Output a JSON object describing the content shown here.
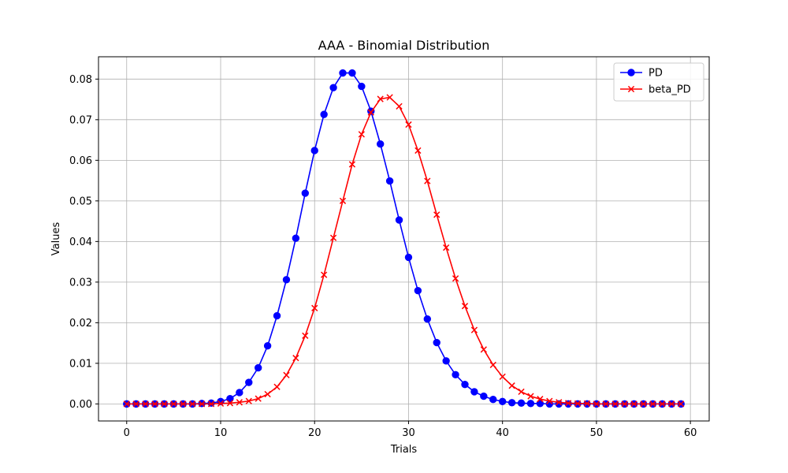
{
  "chart_data": {
    "type": "line",
    "title": "AAA - Binomial Distribution",
    "xlabel": "Trials",
    "ylabel": "Values",
    "xlim": [
      -3,
      62
    ],
    "ylim": [
      -0.0042,
      0.0855
    ],
    "xticks": [
      0,
      10,
      20,
      30,
      40,
      50,
      60
    ],
    "yticks": [
      0.0,
      0.01,
      0.02,
      0.03,
      0.04,
      0.05,
      0.06,
      0.07,
      0.08
    ],
    "ytick_labels": [
      "0.00",
      "0.01",
      "0.02",
      "0.03",
      "0.04",
      "0.05",
      "0.06",
      "0.07",
      "0.08"
    ],
    "grid": true,
    "legend_position": "top-right",
    "series": [
      {
        "name": "PD",
        "color": "#0000ff",
        "marker": "circle",
        "values": [
          0,
          0,
          0,
          0,
          0,
          0,
          0,
          0,
          0.0001,
          0.0002,
          0.0006,
          0.0013,
          0.0028,
          0.0053,
          0.0089,
          0.0143,
          0.0217,
          0.0306,
          0.0408,
          0.0519,
          0.0624,
          0.0713,
          0.0779,
          0.0815,
          0.0815,
          0.0782,
          0.0721,
          0.064,
          0.0549,
          0.0453,
          0.0361,
          0.0279,
          0.0209,
          0.0151,
          0.0106,
          0.0072,
          0.0048,
          0.003,
          0.0019,
          0.0011,
          0.0006,
          0.0003,
          0.0002,
          0.0001,
          0.0001,
          0,
          0,
          0,
          0,
          0,
          0,
          0,
          0,
          0,
          0,
          0,
          0,
          0,
          0,
          0
        ]
      },
      {
        "name": "beta_PD",
        "color": "#ff0000",
        "marker": "x",
        "values": [
          0,
          0,
          0,
          0,
          0,
          0,
          0,
          0,
          0,
          0,
          0.0001,
          0.0002,
          0.0004,
          0.0007,
          0.0013,
          0.0024,
          0.0042,
          0.0071,
          0.0113,
          0.0168,
          0.0236,
          0.0318,
          0.0409,
          0.05,
          0.059,
          0.0664,
          0.0718,
          0.0751,
          0.0755,
          0.0733,
          0.0688,
          0.0624,
          0.0549,
          0.0466,
          0.0385,
          0.0309,
          0.0241,
          0.0182,
          0.0134,
          0.0096,
          0.0067,
          0.0045,
          0.003,
          0.0019,
          0.0012,
          0.0007,
          0.0004,
          0.0002,
          0.0001,
          0.0001,
          0,
          0,
          0,
          0,
          0,
          0,
          0,
          0,
          0,
          0
        ]
      }
    ]
  }
}
